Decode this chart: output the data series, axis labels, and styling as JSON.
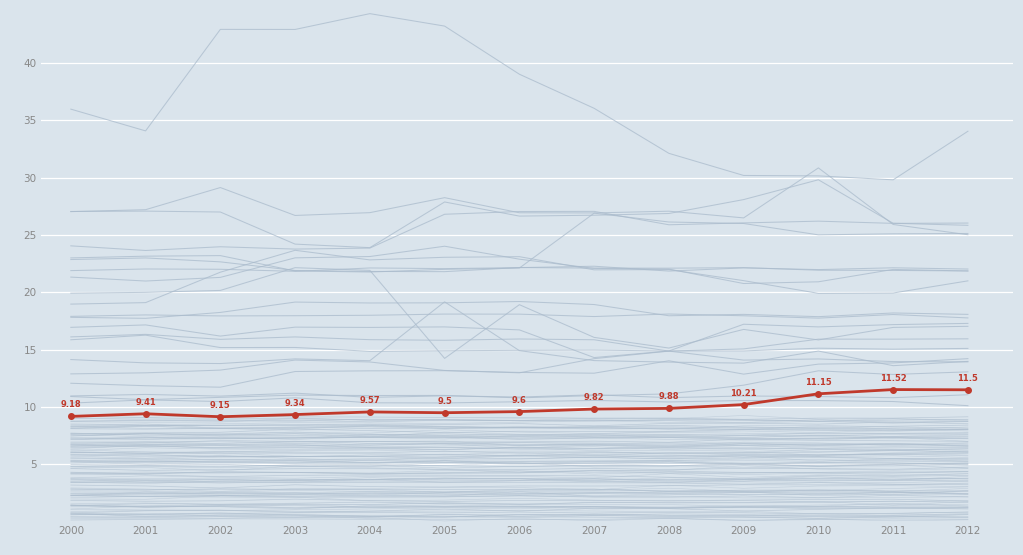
{
  "years": [
    2000,
    2001,
    2002,
    2003,
    2004,
    2005,
    2006,
    2007,
    2008,
    2009,
    2010,
    2011,
    2012
  ],
  "red_line": [
    9.18,
    9.41,
    9.15,
    9.34,
    9.57,
    9.5,
    9.6,
    9.82,
    9.88,
    10.21,
    11.15,
    11.52,
    11.5
  ],
  "red_labels": [
    "9.18",
    "9.41",
    "9.15",
    "9.34",
    "9.57",
    "9.5",
    "9.6",
    "9.82",
    "9.88",
    "10.21",
    "11.15",
    "11.52",
    "11.5"
  ],
  "background_color": "#dae4ec",
  "line_color_gray": "#aabbcc",
  "line_color_red": "#c0392b",
  "ylim": [
    0,
    45
  ],
  "yticks": [
    5,
    10,
    15,
    20,
    25,
    30,
    35,
    40
  ],
  "gray_lines_sparse": [
    [
      36,
      34,
      43,
      43,
      44,
      43,
      39,
      36,
      32,
      30,
      30,
      30,
      34
    ],
    [
      27,
      27,
      29,
      27,
      27,
      28,
      27,
      27,
      27,
      26,
      31,
      26,
      25
    ],
    [
      27,
      27,
      27,
      24,
      24,
      28,
      27,
      27,
      27,
      28,
      30,
      26,
      26
    ],
    [
      24,
      24,
      24,
      24,
      24,
      27,
      27,
      27,
      26,
      26,
      26,
      26,
      26
    ],
    [
      23,
      23,
      23,
      22,
      22,
      22,
      22,
      27,
      26,
      26,
      25,
      25,
      25
    ],
    [
      23,
      23,
      23,
      22,
      22,
      22,
      22,
      22,
      22,
      22,
      22,
      22,
      22
    ],
    [
      22,
      22,
      22,
      22,
      22,
      22,
      22,
      22,
      22,
      22,
      22,
      22,
      22
    ],
    [
      21,
      21,
      21,
      23,
      23,
      24,
      23,
      22,
      22,
      21,
      21,
      22,
      22
    ],
    [
      20,
      20,
      20,
      22,
      22,
      14,
      19,
      16,
      15,
      17,
      16,
      17,
      17
    ],
    [
      19,
      19,
      22,
      24,
      23,
      23,
      23,
      22,
      22,
      21,
      20,
      20,
      21
    ],
    [
      18,
      18,
      18,
      19,
      19,
      19,
      19,
      19,
      18,
      18,
      18,
      18,
      18
    ],
    [
      18,
      18,
      18,
      18,
      18,
      18,
      18,
      18,
      18,
      18,
      18,
      18,
      18
    ],
    [
      17,
      17,
      16,
      17,
      17,
      17,
      17,
      14,
      15,
      17,
      17,
      17,
      17
    ],
    [
      16,
      16,
      16,
      16,
      16,
      16,
      16,
      16,
      15,
      15,
      16,
      16,
      16
    ],
    [
      16,
      16,
      15,
      15,
      15,
      15,
      15,
      15,
      15,
      15,
      15,
      15,
      15
    ],
    [
      14,
      14,
      14,
      14,
      14,
      19,
      15,
      14,
      14,
      14,
      15,
      14,
      14
    ],
    [
      13,
      13,
      13,
      14,
      14,
      13,
      13,
      14,
      15,
      14,
      14,
      14,
      14
    ],
    [
      12,
      12,
      12,
      13,
      13,
      13,
      13,
      13,
      14,
      13,
      14,
      14,
      14
    ],
    [
      11,
      11,
      11,
      11,
      11,
      11,
      11,
      11,
      11,
      12,
      13,
      13,
      13
    ],
    [
      11,
      11,
      11,
      11,
      11,
      11,
      11,
      11,
      11,
      11,
      11,
      11,
      11
    ],
    [
      10.5,
      10.5,
      10.5,
      10.5,
      10.5,
      10.5,
      10.5,
      10.5,
      10.5,
      10.5,
      10.5,
      10.5,
      10.5
    ]
  ],
  "dense_band_levels": [
    9.1,
    8.8,
    8.5,
    8.2,
    7.9,
    7.6,
    7.3,
    7.0,
    6.7,
    6.4,
    6.1,
    5.8,
    5.5,
    5.2,
    4.9,
    4.6,
    4.3,
    4.0,
    3.7,
    3.4,
    3.1,
    2.8,
    2.5,
    2.2,
    1.9,
    1.6,
    1.3,
    1.0,
    0.8,
    0.6,
    0.4,
    0.2
  ]
}
